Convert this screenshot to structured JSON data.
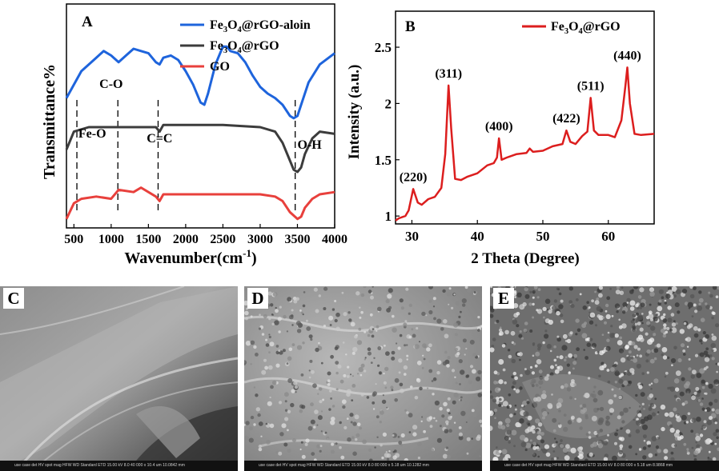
{
  "panels": {
    "A": {
      "label": "A",
      "xlabel": "Wavenumber(cm",
      "xlabel_sup": "-1",
      "xlabel_close": ")",
      "ylabel": "Transmittance%",
      "annotations": [
        "C-O",
        "Fe-O",
        "C=C",
        "O-H"
      ]
    },
    "B": {
      "label": "B",
      "xlabel": "2 Theta (Degree)",
      "ylabel": "Intensity (a.u.)"
    },
    "C": {
      "label": "C",
      "info": "use case  det  HV  spot  mag  HFW  WD    Standard  ETD  15.00 kV  8.0  40 000 x  10.4 um  10.0842 mm"
    },
    "D": {
      "label": "D",
      "info": "use case  det  HV  spot  mag  HFW  WD    Standard  ETD  15.00 kV  8.0  80 000 x  5.18 um  10.1282 mm"
    },
    "E": {
      "label": "E",
      "info": "use case  det  HV  spot  mag  HFW  WD    Standard  ETD  15.00 kV  8.0  80 000 x  5.18 um  8.9868 mm"
    }
  },
  "chart_data": [
    {
      "type": "line",
      "panel": "A",
      "x_ticks": [
        500,
        1000,
        1500,
        2000,
        2500,
        3000,
        3500,
        4000
      ],
      "xlim": [
        400,
        4000
      ],
      "ylim": [
        0,
        1
      ],
      "y_ticks_shown": false,
      "dashed_markers_x": [
        540,
        1090,
        1630,
        3470
      ],
      "annotations": [
        {
          "text": "C-O",
          "x": 1000
        },
        {
          "text": "Fe-O",
          "x": 560
        },
        {
          "text": "C=C",
          "x": 1650
        },
        {
          "text": "O-H",
          "x": 3500
        }
      ],
      "legend_position": "top-right",
      "series": [
        {
          "name": "Fe3O4@rGO-aloin",
          "legend_main": "Fe",
          "legend_sub1": "3",
          "legend_mid": "O",
          "legend_sub2": "4",
          "legend_tail": "@rGO-aloin",
          "color": "#1e64dc",
          "x": [
            400,
            600,
            800,
            900,
            1000,
            1100,
            1200,
            1300,
            1400,
            1500,
            1600,
            1650,
            1700,
            1800,
            1900,
            2000,
            2100,
            2200,
            2250,
            2300,
            2400,
            2500,
            2550,
            2600,
            2700,
            2800,
            2900,
            3000,
            3100,
            3200,
            3300,
            3400,
            3450,
            3500,
            3550,
            3650,
            3800,
            4000
          ],
          "y": [
            0.58,
            0.7,
            0.76,
            0.79,
            0.77,
            0.74,
            0.77,
            0.8,
            0.79,
            0.78,
            0.74,
            0.73,
            0.76,
            0.77,
            0.75,
            0.7,
            0.64,
            0.56,
            0.55,
            0.6,
            0.73,
            0.81,
            0.81,
            0.79,
            0.78,
            0.74,
            0.68,
            0.63,
            0.6,
            0.58,
            0.55,
            0.5,
            0.49,
            0.5,
            0.55,
            0.65,
            0.73,
            0.78
          ]
        },
        {
          "name": "Fe3O4@rGO",
          "legend_main": "Fe",
          "legend_sub1": "3",
          "legend_mid": "O",
          "legend_sub2": "4",
          "legend_tail": "@rGO",
          "color": "#3c3c3c",
          "x": [
            400,
            500,
            700,
            1000,
            1300,
            1600,
            1650,
            1700,
            2000,
            2500,
            3000,
            3200,
            3300,
            3400,
            3450,
            3500,
            3550,
            3600,
            3700,
            3800,
            4000
          ],
          "y": [
            0.35,
            0.43,
            0.45,
            0.45,
            0.45,
            0.45,
            0.43,
            0.46,
            0.46,
            0.46,
            0.45,
            0.43,
            0.38,
            0.3,
            0.26,
            0.25,
            0.27,
            0.33,
            0.4,
            0.43,
            0.42
          ]
        },
        {
          "name": "GO",
          "legend_main": "GO",
          "legend_sub1": "",
          "legend_mid": "",
          "legend_sub2": "",
          "legend_tail": "",
          "color": "#e8403c",
          "x": [
            400,
            500,
            600,
            800,
            1000,
            1100,
            1300,
            1400,
            1600,
            1650,
            1700,
            2000,
            2500,
            3000,
            3200,
            3300,
            3400,
            3500,
            3550,
            3600,
            3700,
            3800,
            4000
          ],
          "y": [
            0.04,
            0.11,
            0.13,
            0.14,
            0.13,
            0.17,
            0.16,
            0.18,
            0.14,
            0.12,
            0.15,
            0.15,
            0.15,
            0.15,
            0.14,
            0.12,
            0.07,
            0.04,
            0.05,
            0.09,
            0.13,
            0.15,
            0.16
          ]
        }
      ]
    },
    {
      "type": "line",
      "panel": "B",
      "x_ticks": [
        30,
        40,
        50,
        60
      ],
      "y_ticks": [
        1,
        1.5,
        2,
        2.5
      ],
      "y_tick_labels": [
        "1",
        "1.5",
        "2",
        "2.5"
      ],
      "xlim": [
        27.5,
        67
      ],
      "ylim": [
        0.93,
        2.82
      ],
      "legend_position": "top-right",
      "peak_labels": [
        {
          "text": "(220)",
          "x": 30.2,
          "y": 1.24
        },
        {
          "text": "(311)",
          "x": 35.6,
          "y": 2.16
        },
        {
          "text": "(400)",
          "x": 43.3,
          "y": 1.69
        },
        {
          "text": "(422)",
          "x": 53.6,
          "y": 1.76
        },
        {
          "text": "(511)",
          "x": 57.3,
          "y": 2.05
        },
        {
          "text": "(440)",
          "x": 62.9,
          "y": 2.32
        }
      ],
      "series": [
        {
          "name": "Fe3O4@rGO",
          "legend_main": "Fe",
          "legend_sub1": "3",
          "legend_mid": "O",
          "legend_sub2": "4",
          "legend_tail": "@rGO",
          "color": "#dc1e1e",
          "x": [
            27.5,
            28,
            29,
            29.5,
            30.2,
            30.9,
            31.5,
            32.5,
            33.5,
            34.5,
            35.1,
            35.6,
            36.0,
            36.6,
            37.5,
            38.5,
            40,
            41.5,
            42.5,
            43.0,
            43.3,
            43.7,
            44.5,
            46,
            47.5,
            48,
            48.5,
            50,
            51.5,
            53.0,
            53.6,
            54.2,
            55.0,
            56.0,
            56.8,
            57.3,
            57.8,
            58.5,
            60.0,
            61.0,
            62.0,
            62.6,
            62.9,
            63.3,
            64.0,
            65.0,
            67.0
          ],
          "y": [
            0.96,
            0.98,
            1.0,
            1.05,
            1.24,
            1.12,
            1.1,
            1.15,
            1.17,
            1.25,
            1.55,
            2.16,
            1.78,
            1.33,
            1.32,
            1.35,
            1.38,
            1.45,
            1.47,
            1.52,
            1.69,
            1.5,
            1.52,
            1.55,
            1.56,
            1.6,
            1.57,
            1.58,
            1.62,
            1.64,
            1.76,
            1.66,
            1.64,
            1.71,
            1.75,
            2.05,
            1.76,
            1.72,
            1.72,
            1.7,
            1.85,
            2.15,
            2.32,
            2.0,
            1.73,
            1.72,
            1.73
          ]
        }
      ]
    }
  ]
}
